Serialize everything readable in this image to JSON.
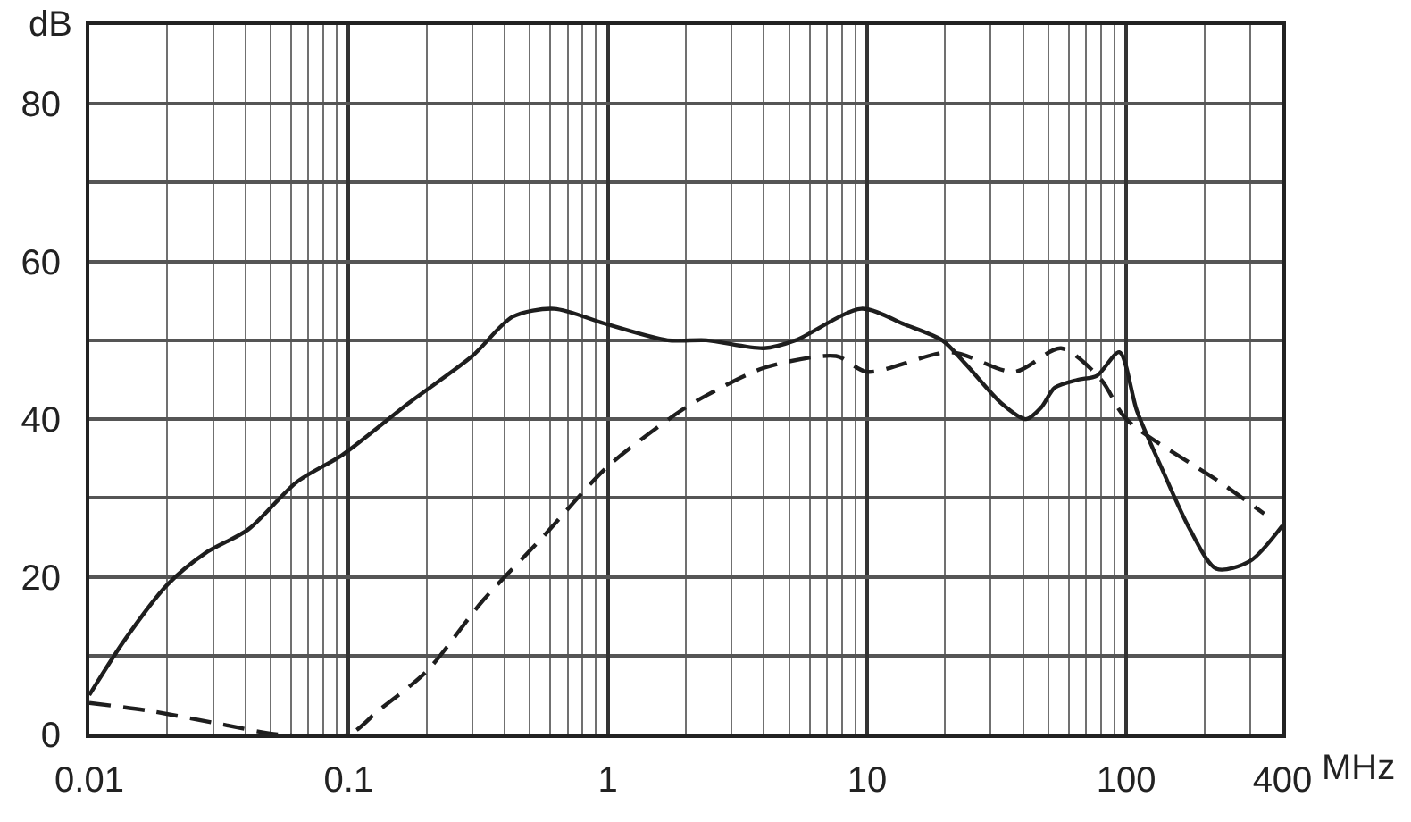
{
  "chart_data": {
    "type": "line",
    "xlabel": "MHz",
    "ylabel": "dB",
    "log": "x",
    "grid": true,
    "xlim": [
      0.01,
      400
    ],
    "ylim": [
      0,
      90
    ],
    "xticks": [
      0.01,
      {
        "value": 0.02,
        "label": null
      },
      {
        "value": 0.03,
        "label": null
      },
      {
        "value": 0.04,
        "label": null
      },
      {
        "value": 0.05,
        "label": null
      },
      {
        "value": 0.06,
        "label": null
      },
      {
        "value": 0.07,
        "label": null
      },
      {
        "value": 0.08,
        "label": null
      },
      {
        "value": 0.09,
        "label": null
      },
      0.1,
      {
        "value": 0.2,
        "label": null
      },
      {
        "value": 0.3,
        "label": null
      },
      {
        "value": 0.4,
        "label": null
      },
      {
        "value": 0.5,
        "label": null
      },
      {
        "value": 0.6,
        "label": null
      },
      {
        "value": 0.7,
        "label": null
      },
      {
        "value": 0.8,
        "label": null
      },
      {
        "value": 0.9,
        "label": null
      },
      1,
      {
        "value": 2,
        "label": null
      },
      {
        "value": 3,
        "label": null
      },
      {
        "value": 4,
        "label": null
      },
      {
        "value": 5,
        "label": null
      },
      {
        "value": 6,
        "label": null
      },
      {
        "value": 7,
        "label": null
      },
      {
        "value": 8,
        "label": null
      },
      {
        "value": 9,
        "label": null
      },
      10,
      {
        "value": 20,
        "label": null
      },
      {
        "value": 30,
        "label": null
      },
      {
        "value": 40,
        "label": null
      },
      {
        "value": 50,
        "label": null
      },
      {
        "value": 60,
        "label": null
      },
      {
        "value": 70,
        "label": null
      },
      {
        "value": 80,
        "label": null
      },
      {
        "value": 90,
        "label": null
      },
      100,
      {
        "value": 200,
        "label": null
      },
      {
        "value": 300,
        "label": null
      },
      400
    ],
    "yticks": [
      0,
      {
        "value": 10,
        "label": null
      },
      20,
      {
        "value": 30,
        "label": null
      },
      40,
      {
        "value": 50,
        "label": null
      },
      60,
      {
        "value": 70,
        "label": null
      },
      80
    ],
    "series": [
      {
        "color": "#1e1e1e",
        "line_style": "solid",
        "x": [
          0.01,
          0.0137,
          0.02,
          0.028,
          0.041,
          0.063,
          0.095,
          0.17,
          0.3,
          0.43,
          0.62,
          1,
          1.7,
          2.4,
          4,
          5.3,
          9.5,
          14,
          19.5,
          24,
          33,
          41,
          47,
          53,
          65,
          77,
          94,
          110,
          136,
          176,
          223,
          300,
          400
        ],
        "values": [
          5,
          12,
          19,
          23,
          26,
          32,
          35.5,
          42,
          48,
          53,
          54,
          52,
          50,
          50,
          49,
          50,
          54,
          52,
          50,
          47,
          42,
          40,
          41.5,
          44,
          45,
          45.5,
          48.5,
          41,
          34,
          26,
          21,
          22,
          26.5
        ]
      },
      {
        "color": "#1e1e1e",
        "line_style": "dashed",
        "x": [
          0.01,
          0.017,
          0.03,
          0.054,
          0.1,
          0.13,
          0.2,
          0.33,
          0.56,
          1,
          1.9,
          2.4,
          4,
          7.6,
          10,
          21,
          37,
          56,
          80,
          100,
          230,
          340
        ],
        "values": [
          4,
          3,
          1.5,
          0,
          0,
          3,
          8,
          17,
          25,
          34,
          41,
          43,
          46.5,
          48,
          46,
          48.5,
          46,
          49,
          45,
          40,
          32,
          28
        ]
      }
    ]
  }
}
